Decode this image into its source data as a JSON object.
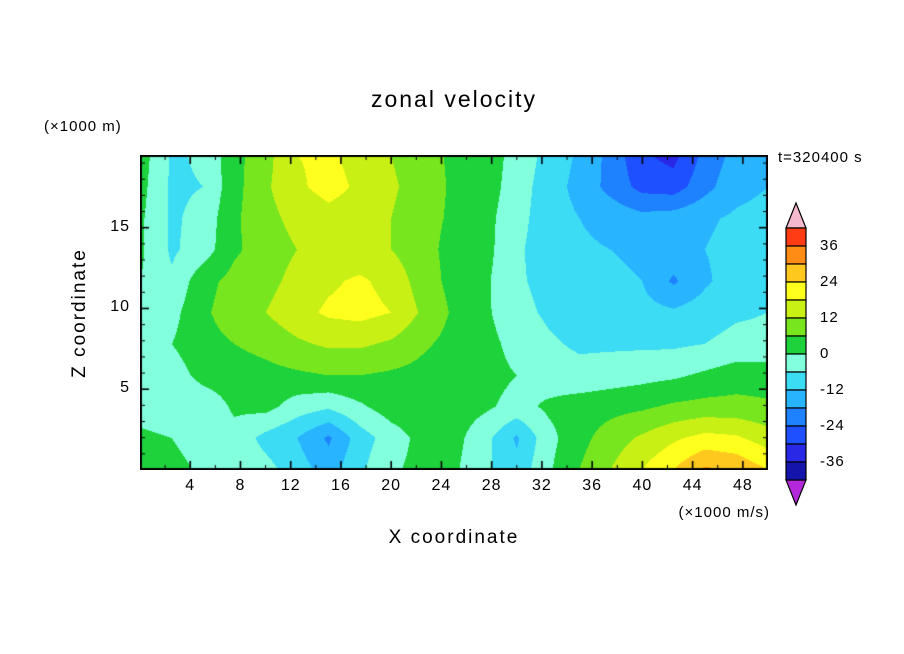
{
  "title": "zonal velocity",
  "annotations": {
    "time_label": "t=320400 s",
    "y_unit_label": "(×1000 m)",
    "shading_unit_label": "(×1000 m/s)"
  },
  "x_axis": {
    "label": "X coordinate",
    "tick_labels": [
      4,
      8,
      12,
      16,
      20,
      24,
      28,
      32,
      36,
      40,
      44,
      48
    ],
    "range": [
      0,
      50
    ]
  },
  "y_axis": {
    "label": "Z coordinate",
    "tick_labels": [
      5,
      10,
      15
    ],
    "range": [
      0,
      19.5
    ]
  },
  "colorbar": {
    "tick_labels": [
      36,
      24,
      12,
      0,
      -12,
      -24,
      -36
    ],
    "bin_edges": [
      -42,
      -36,
      -30,
      -24,
      -18,
      -12,
      -6,
      0,
      6,
      12,
      18,
      24,
      30,
      36,
      42
    ],
    "colors": [
      "#1414aa",
      "#2828e6",
      "#1e50ff",
      "#1e82ff",
      "#28b4ff",
      "#3cdcf5",
      "#82ffdc",
      "#1ed23c",
      "#78e61e",
      "#c8f014",
      "#ffff1e",
      "#ffc81e",
      "#ff8c14",
      "#ff3c14"
    ],
    "over_color": "#f5b9cd",
    "under_color": "#b428dc"
  },
  "chart_data": {
    "type": "heatmap",
    "subtype": "filled_contour",
    "title": "zonal velocity",
    "xlabel": "X coordinate",
    "ylabel": "Z coordinate",
    "x_unit": "×1000 m",
    "value_unit": "×1000 m/s",
    "time": "t=320400 s",
    "contour_interval": 6,
    "value_range": [
      -42,
      42
    ],
    "x": [
      0,
      2.5,
      5,
      7.5,
      10,
      12.5,
      15,
      17.5,
      20,
      22.5,
      25,
      27.5,
      30,
      32.5,
      35,
      37.5,
      40,
      42.5,
      45,
      47.5,
      50
    ],
    "z": [
      0,
      1.95,
      3.9,
      5.85,
      7.8,
      9.75,
      11.7,
      13.65,
      15.6,
      17.55,
      19.5
    ],
    "values": [
      [
        3,
        2,
        -1,
        -1,
        -4,
        -9,
        -15,
        -7,
        -1,
        2,
        1,
        -5,
        -10,
        -1,
        6,
        12,
        18,
        24,
        31,
        29,
        24
      ],
      [
        2,
        0,
        -3,
        -2,
        -8,
        -12,
        -19,
        -9,
        -3,
        2,
        2,
        -4,
        -13,
        -2,
        4,
        9,
        13,
        17,
        20,
        19,
        15
      ],
      [
        -4,
        -6,
        -4,
        1,
        2,
        -3,
        -5,
        -1,
        3,
        4,
        3,
        1,
        -2,
        1,
        3,
        4,
        5,
        7,
        8,
        8,
        7
      ],
      [
        -6,
        -3,
        2,
        3,
        4,
        5,
        6,
        6,
        5,
        4,
        3,
        2,
        0,
        -3,
        -4,
        -3,
        -2,
        -1,
        1,
        3,
        3
      ],
      [
        -3,
        0,
        4,
        6,
        8,
        11,
        13,
        13,
        11,
        7,
        4,
        2,
        -2,
        -5,
        -7,
        -7,
        -7,
        -7,
        -6,
        -4,
        -4
      ],
      [
        -2,
        -2,
        5,
        9,
        12,
        16,
        19,
        20,
        18,
        11,
        5,
        1,
        -4,
        -7,
        -9,
        -10,
        -10,
        -11,
        -9,
        -7,
        -6
      ],
      [
        0,
        -5,
        4,
        8,
        10,
        14,
        17,
        19,
        16,
        9,
        4,
        1,
        -5,
        -8,
        -10,
        -11,
        -12,
        -19,
        -13,
        -9,
        -8
      ],
      [
        1,
        -7,
        -3,
        5,
        9,
        12,
        14,
        14,
        12,
        8,
        4,
        2,
        -5,
        -9,
        -11,
        -12,
        -13,
        -14,
        -12,
        -10,
        -9
      ],
      [
        1,
        -7,
        -4,
        5,
        10,
        14,
        16,
        15,
        12,
        8,
        5,
        2,
        -4,
        -9,
        -12,
        -14,
        -16,
        -15,
        -13,
        -11,
        -10
      ],
      [
        2,
        -7,
        -6,
        4,
        11,
        17,
        20,
        17,
        13,
        9,
        5,
        3,
        -3,
        -9,
        -14,
        -20,
        -26,
        -27,
        -20,
        -14,
        -12
      ],
      [
        3,
        -7,
        -5,
        4,
        10,
        18,
        19,
        16,
        12,
        8,
        5,
        3,
        -2,
        -8,
        -13,
        -20,
        -29,
        -32,
        -22,
        -16,
        -14
      ]
    ]
  }
}
